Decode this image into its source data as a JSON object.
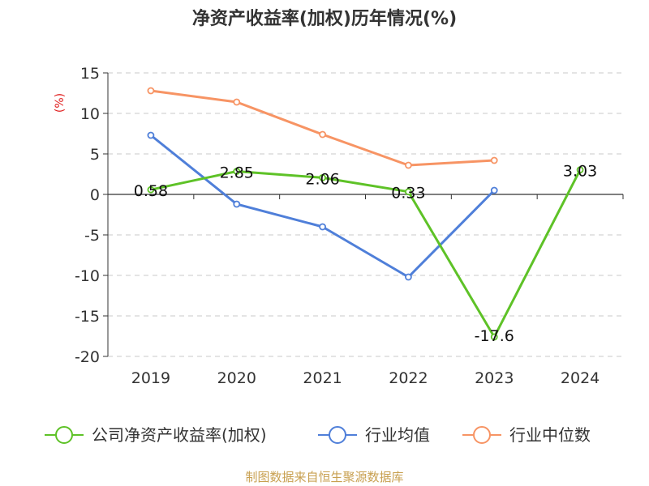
{
  "chart_data": {
    "type": "line",
    "title": "净资产收益率(加权)历年情况(%)",
    "ylabel": "(%)",
    "categories": [
      "2019",
      "2020",
      "2021",
      "2022",
      "2023",
      "2024"
    ],
    "ylim": [
      -20,
      15
    ],
    "yticks": [
      15,
      10,
      5,
      0,
      -5,
      -10,
      -15,
      -20
    ],
    "ytick_labels": [
      "15",
      "10",
      "5",
      "0",
      "-5",
      "-10",
      "-15",
      "-20"
    ],
    "grid": true,
    "legend_position": "bottom",
    "series": [
      {
        "name": "公司净资产收益率(加权)",
        "color": "#5ec227",
        "values": [
          0.58,
          2.85,
          2.06,
          0.33,
          -17.6,
          3.03
        ],
        "labels": [
          "0.58",
          "2.85",
          "2.06",
          "0.33",
          "-17.6",
          "3.03"
        ]
      },
      {
        "name": "行业均值",
        "color": "#4f7fd9",
        "values": [
          7.3,
          -1.2,
          -4.0,
          -10.2,
          0.5,
          null
        ]
      },
      {
        "name": "行业中位数",
        "color": "#f79464",
        "values": [
          12.8,
          11.4,
          7.4,
          3.6,
          4.2,
          null
        ]
      }
    ]
  },
  "source_text": "制图数据来自恒生聚源数据库"
}
